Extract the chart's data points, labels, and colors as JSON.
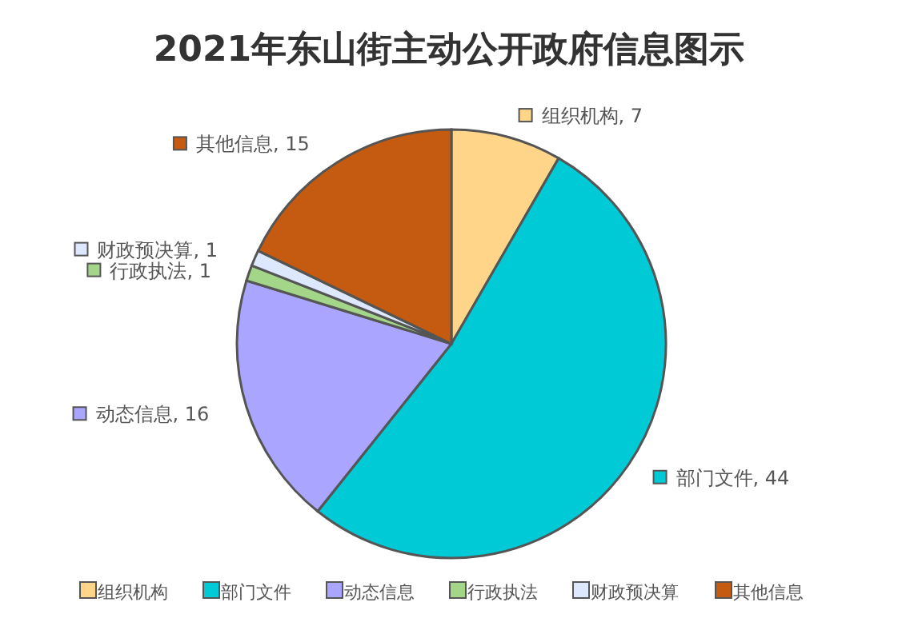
{
  "chart_data": {
    "type": "pie",
    "title": "2021年东山街主动公开政府信息图示",
    "categories": [
      "组织机构",
      "部门文件",
      "动态信息",
      "行政执法",
      "财政预决算",
      "其他信息"
    ],
    "values": [
      7,
      44,
      16,
      1,
      1,
      15
    ],
    "value_labels": [
      "组织机构, 7",
      "部门文件, 44",
      "动态信息, 16",
      "行政执法, 1",
      "财政预决算, 1",
      "其他信息, 15"
    ],
    "colors": [
      "#ffd58a",
      "#00cad6",
      "#aaa5ff",
      "#a4d68a",
      "#dde8ff",
      "#c55a11"
    ],
    "legend": "bottom"
  }
}
